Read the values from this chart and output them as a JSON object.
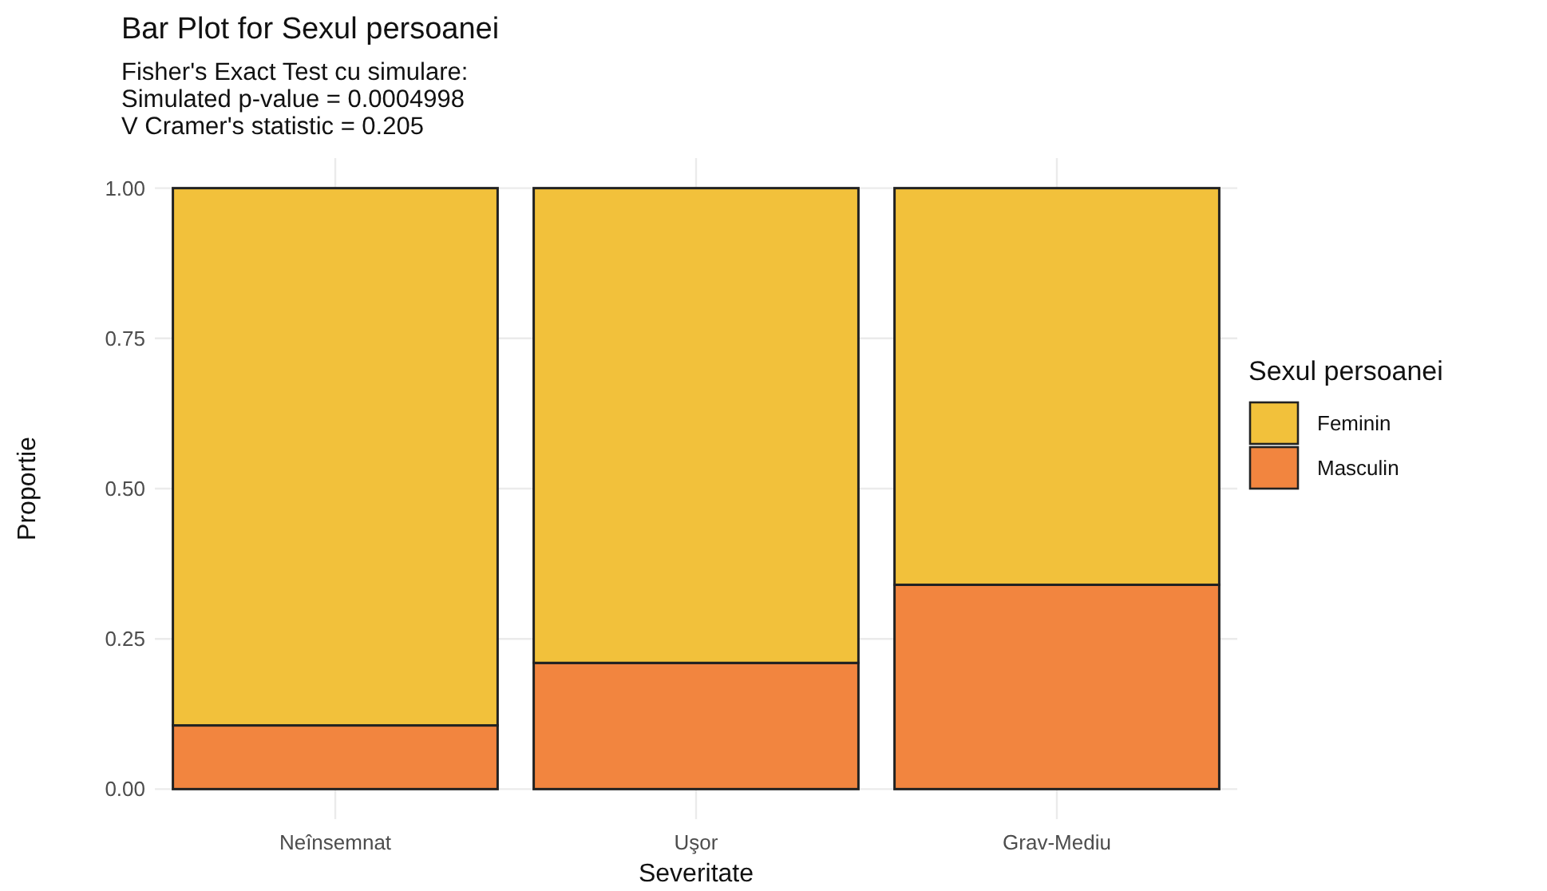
{
  "chart_data": {
    "type": "bar",
    "stacked": true,
    "title": "Bar Plot for Sexul persoanei",
    "subtitle": "Fisher's Exact Test cu simulare:\nSimulated p-value = 0.0004998\nV Cramer's statistic = 0.205",
    "xlabel": "Severitate",
    "ylabel": "Proportie",
    "legend_title": "Sexul persoanei",
    "categories": [
      "Neînsemnat",
      "Uşor",
      "Grav-Mediu"
    ],
    "series": [
      {
        "name": "Masculin",
        "color": "#f2853f",
        "values": [
          0.106,
          0.21,
          0.34
        ]
      },
      {
        "name": "Feminin",
        "color": "#f2c13b",
        "values": [
          0.894,
          0.79,
          0.66
        ]
      }
    ],
    "ylim": [
      -0.05,
      1.05
    ],
    "yticks": [
      {
        "value": 0,
        "label": "0.00"
      },
      {
        "value": 0.25,
        "label": "0.25"
      },
      {
        "value": 0.5,
        "label": "0.50"
      },
      {
        "value": 0.75,
        "label": "0.75"
      },
      {
        "value": 1,
        "label": "1.00"
      }
    ],
    "grid": true,
    "legend": "right"
  }
}
